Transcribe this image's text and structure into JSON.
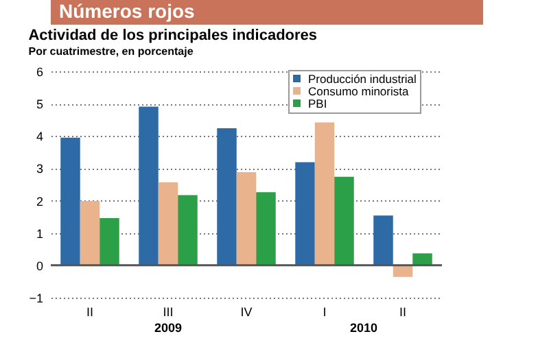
{
  "chart_data": {
    "type": "bar",
    "title": "Números rojos",
    "subtitle": "Actividad de los principales indicadores",
    "ylabel": "Por cuatrimestre, en porcentaje",
    "categories": [
      "II",
      "III",
      "IV",
      "I",
      "II"
    ],
    "series": [
      {
        "name": "Producción industrial",
        "color": "#2e6aa6",
        "values": [
          3.95,
          4.91,
          4.24,
          3.19,
          1.54
        ]
      },
      {
        "name": "Consumo minorista",
        "color": "#e9b48d",
        "values": [
          1.99,
          2.57,
          2.88,
          4.42,
          -0.36
        ]
      },
      {
        "name": "PBI",
        "color": "#2ca048",
        "values": [
          1.46,
          2.17,
          2.26,
          2.74,
          0.37
        ]
      }
    ],
    "ylim": [
      -1,
      6
    ],
    "yticks": [
      -1,
      0,
      1,
      2,
      3,
      4,
      5,
      6
    ],
    "grid": "y",
    "legend": "top right",
    "ref_lines": [
      {
        "axis": "y",
        "value": 0,
        "color": "#555555"
      }
    ],
    "annotations": [
      "2009",
      "2010"
    ]
  }
}
